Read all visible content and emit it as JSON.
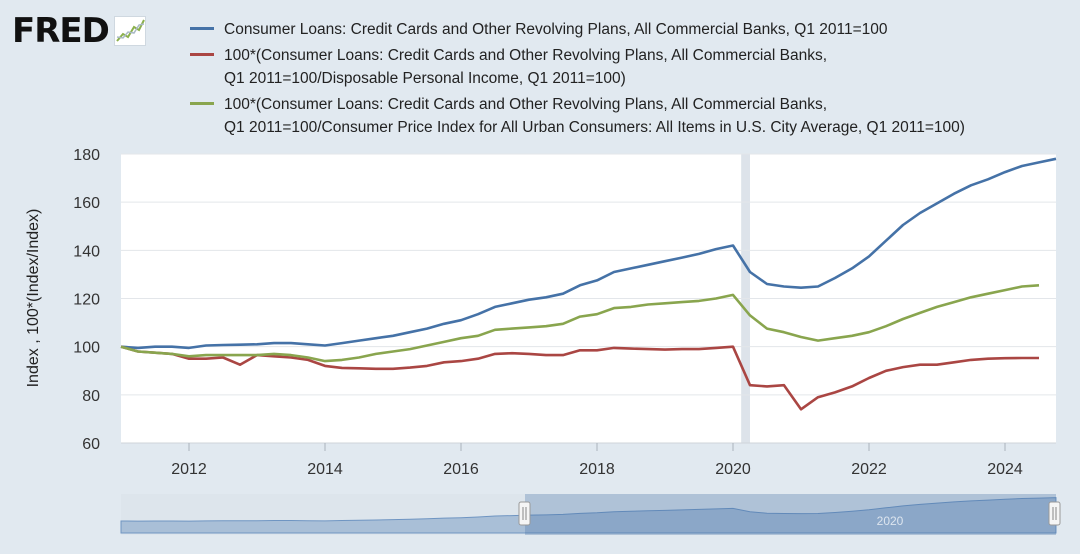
{
  "logo": {
    "text": "FRED"
  },
  "legend": [
    {
      "label": "Consumer Loans: Credit Cards and Other Revolving Plans, All Commercial Banks, Q1 2011=100",
      "color": "#4572a7"
    },
    {
      "label": "100*(Consumer Loans: Credit Cards and Other Revolving Plans, All Commercial Banks,\nQ1 2011=100/Disposable Personal Income, Q1 2011=100)",
      "color": "#aa4643"
    },
    {
      "label": "100*(Consumer Loans: Credit Cards and Other Revolving Plans, All Commercial Banks,\nQ1 2011=100/Consumer Price Index for All Urban Consumers: All Items in U.S. City Average, Q1 2011=100)",
      "color": "#89a54e"
    }
  ],
  "chart_data": {
    "type": "line",
    "ylabel": "Index , 100*(Index/Index)",
    "xlabel": "",
    "ylim": [
      60,
      180
    ],
    "yticks": [
      60,
      80,
      100,
      120,
      140,
      160,
      180
    ],
    "xlim": [
      2011.0,
      2024.75
    ],
    "xticks": [
      2012,
      2014,
      2016,
      2018,
      2020,
      2022,
      2024
    ],
    "grid": true,
    "legend_position": "top",
    "recession_shading": [
      [
        2020.12,
        2020.25
      ]
    ],
    "series": [
      {
        "name": "Consumer Loans: Credit Cards and Other Revolving Plans, All Commercial Banks, Q1 2011=100",
        "color": "#4572a7",
        "x": [
          2011.0,
          2011.25,
          2011.5,
          2011.75,
          2012.0,
          2012.25,
          2012.5,
          2012.75,
          2013.0,
          2013.25,
          2013.5,
          2013.75,
          2014.0,
          2014.25,
          2014.5,
          2014.75,
          2015.0,
          2015.25,
          2015.5,
          2015.75,
          2016.0,
          2016.25,
          2016.5,
          2016.75,
          2017.0,
          2017.25,
          2017.5,
          2017.75,
          2018.0,
          2018.25,
          2018.5,
          2018.75,
          2019.0,
          2019.25,
          2019.5,
          2019.75,
          2020.0,
          2020.25,
          2020.5,
          2020.75,
          2021.0,
          2021.25,
          2021.5,
          2021.75,
          2022.0,
          2022.25,
          2022.5,
          2022.75,
          2023.0,
          2023.25,
          2023.5,
          2023.75,
          2024.0,
          2024.25,
          2024.5,
          2024.75
        ],
        "values": [
          100,
          99.5,
          100,
          100,
          99.5,
          100.5,
          100.7,
          100.8,
          101,
          101.5,
          101.5,
          101,
          100.5,
          101.5,
          102.5,
          103.5,
          104.5,
          106,
          107.5,
          109.5,
          111,
          113.5,
          116.5,
          118,
          119.5,
          120.5,
          122,
          125.5,
          127.5,
          131,
          132.5,
          134,
          135.5,
          137,
          138.5,
          140.5,
          142,
          131,
          126,
          125,
          124.5,
          125,
          128.5,
          132.5,
          137.5,
          144,
          150.5,
          155.5,
          159.5,
          163.5,
          167,
          169.5,
          172.5,
          175,
          176.5,
          178
        ]
      },
      {
        "name": "100*(Consumer Loans: Credit Cards and Other Revolving Plans, All Commercial Banks, Q1 2011=100/Disposable Personal Income, Q1 2011=100)",
        "color": "#aa4643",
        "x": [
          2011.0,
          2011.25,
          2011.5,
          2011.75,
          2012.0,
          2012.25,
          2012.5,
          2012.75,
          2013.0,
          2013.25,
          2013.5,
          2013.75,
          2014.0,
          2014.25,
          2014.5,
          2014.75,
          2015.0,
          2015.25,
          2015.5,
          2015.75,
          2016.0,
          2016.25,
          2016.5,
          2016.75,
          2017.0,
          2017.25,
          2017.5,
          2017.75,
          2018.0,
          2018.25,
          2018.5,
          2018.75,
          2019.0,
          2019.25,
          2019.5,
          2019.75,
          2020.0,
          2020.25,
          2020.5,
          2020.75,
          2021.0,
          2021.25,
          2021.5,
          2021.75,
          2022.0,
          2022.25,
          2022.5,
          2022.75,
          2023.0,
          2023.25,
          2023.5,
          2023.75,
          2024.0,
          2024.25,
          2024.5
        ],
        "values": [
          100,
          98,
          97.5,
          97,
          95,
          95,
          95.5,
          92.5,
          96.5,
          96,
          95.5,
          94.5,
          92,
          91.2,
          91,
          90.8,
          90.8,
          91.3,
          92,
          93.5,
          94,
          95,
          97,
          97.3,
          97,
          96.5,
          96.5,
          98.5,
          98.5,
          99.5,
          99.2,
          99,
          98.8,
          99,
          99,
          99.5,
          100,
          84,
          83.5,
          84,
          74,
          79,
          81,
          83.5,
          87,
          90,
          91.5,
          92.5,
          92.5,
          93.5,
          94.5,
          95,
          95.2,
          95.3,
          95.3
        ]
      },
      {
        "name": "100*(Consumer Loans: Credit Cards and Other Revolving Plans, All Commercial Banks, Q1 2011=100/Consumer Price Index for All Urban Consumers: All Items in U.S. City Average, Q1 2011=100)",
        "color": "#89a54e",
        "x": [
          2011.0,
          2011.25,
          2011.5,
          2011.75,
          2012.0,
          2012.25,
          2012.5,
          2012.75,
          2013.0,
          2013.25,
          2013.5,
          2013.75,
          2014.0,
          2014.25,
          2014.5,
          2014.75,
          2015.0,
          2015.25,
          2015.5,
          2015.75,
          2016.0,
          2016.25,
          2016.5,
          2016.75,
          2017.0,
          2017.25,
          2017.5,
          2017.75,
          2018.0,
          2018.25,
          2018.5,
          2018.75,
          2019.0,
          2019.25,
          2019.5,
          2019.75,
          2020.0,
          2020.25,
          2020.5,
          2020.75,
          2021.0,
          2021.25,
          2021.5,
          2021.75,
          2022.0,
          2022.25,
          2022.5,
          2022.75,
          2023.0,
          2023.25,
          2023.5,
          2023.75,
          2024.0,
          2024.25,
          2024.5
        ],
        "values": [
          100,
          98,
          97.5,
          97,
          96,
          96.5,
          96.5,
          96.5,
          96.5,
          97,
          96.5,
          95.5,
          94,
          94.5,
          95.5,
          97,
          98,
          99,
          100.5,
          102,
          103.5,
          104.5,
          107,
          107.5,
          108,
          108.5,
          109.5,
          112.5,
          113.5,
          116,
          116.5,
          117.5,
          118,
          118.5,
          119,
          120,
          121.5,
          113,
          107.5,
          106,
          104,
          102.5,
          103.5,
          104.5,
          106,
          108.5,
          111.5,
          114,
          116.5,
          118.5,
          120.5,
          122,
          123.5,
          125,
          125.5
        ]
      }
    ]
  },
  "navigator": {
    "label": "2020",
    "values": [
      100,
      99.5,
      100,
      100,
      99.5,
      100.5,
      100.7,
      100.8,
      101,
      101.5,
      101.5,
      101,
      100.5,
      101.5,
      102.5,
      103.5,
      104.5,
      106,
      107.5,
      109.5,
      111,
      113.5,
      116.5,
      118,
      119.5,
      120.5,
      122,
      125.5,
      127.5,
      131,
      132.5,
      134,
      135.5,
      137,
      138.5,
      140.5,
      142,
      131,
      126,
      125,
      124.5,
      125,
      128.5,
      132.5,
      137.5,
      144,
      150.5,
      155.5,
      159.5,
      163.5,
      167,
      169.5,
      172.5,
      175,
      176.5,
      178
    ]
  }
}
